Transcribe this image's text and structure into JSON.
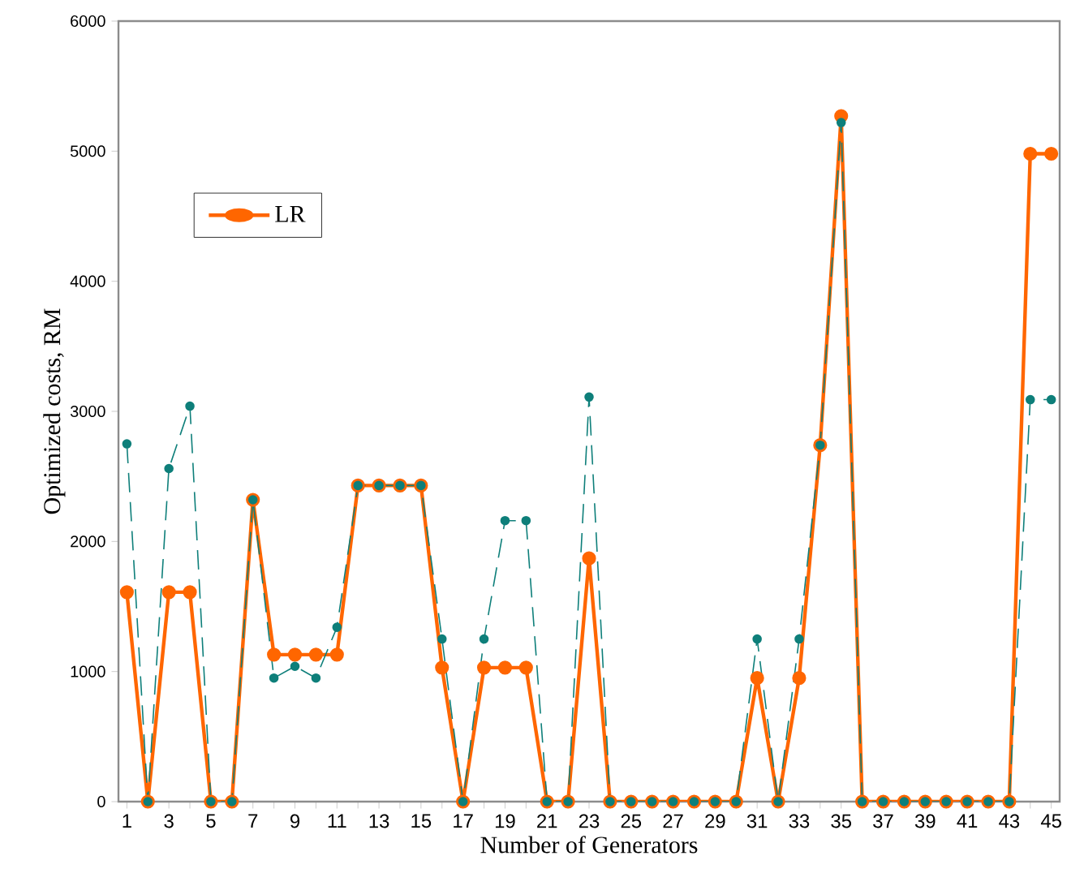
{
  "chart_data": {
    "type": "line",
    "xlabel": "Number of Generators",
    "ylabel": "Optimized costs, RM",
    "x": [
      1,
      2,
      3,
      4,
      5,
      6,
      7,
      8,
      9,
      10,
      11,
      12,
      13,
      14,
      15,
      16,
      17,
      18,
      19,
      20,
      21,
      22,
      23,
      24,
      25,
      26,
      27,
      28,
      29,
      30,
      31,
      32,
      33,
      34,
      35,
      36,
      37,
      38,
      39,
      40,
      41,
      42,
      43,
      44,
      45
    ],
    "xlim": [
      0.6,
      45.4
    ],
    "xticks": [
      1,
      {
        "value": 2,
        "label": null
      },
      3,
      {
        "value": 4,
        "label": null
      },
      5,
      {
        "value": 6,
        "label": null
      },
      7,
      {
        "value": 8,
        "label": null
      },
      9,
      {
        "value": 10,
        "label": null
      },
      11,
      {
        "value": 12,
        "label": null
      },
      13,
      {
        "value": 14,
        "label": null
      },
      15,
      {
        "value": 16,
        "label": null
      },
      17,
      {
        "value": 18,
        "label": null
      },
      19,
      {
        "value": 20,
        "label": null
      },
      21,
      {
        "value": 22,
        "label": null
      },
      23,
      {
        "value": 24,
        "label": null
      },
      25,
      {
        "value": 26,
        "label": null
      },
      27,
      {
        "value": 28,
        "label": null
      },
      29,
      {
        "value": 30,
        "label": null
      },
      31,
      {
        "value": 32,
        "label": null
      },
      33,
      {
        "value": 34,
        "label": null
      },
      35,
      {
        "value": 36,
        "label": null
      },
      37,
      {
        "value": 38,
        "label": null
      },
      39,
      {
        "value": 40,
        "label": null
      },
      41,
      {
        "value": 42,
        "label": null
      },
      43,
      {
        "value": 44,
        "label": null
      },
      45
    ],
    "ylim": [
      0,
      6000
    ],
    "yticks": [
      0,
      1000,
      2000,
      3000,
      4000,
      5000,
      6000
    ],
    "grid": false,
    "legend": "top left",
    "marker": "circle",
    "series": [
      {
        "name": "LR",
        "color": "#ff6600",
        "line_style": "solid",
        "values": [
          1610,
          0,
          1610,
          1610,
          0,
          0,
          2320,
          1130,
          1130,
          1130,
          1130,
          2430,
          2430,
          2430,
          2430,
          1030,
          0,
          1030,
          1030,
          1030,
          0,
          0,
          1870,
          0,
          0,
          0,
          0,
          0,
          0,
          0,
          950,
          0,
          950,
          2740,
          5270,
          0,
          0,
          0,
          0,
          0,
          0,
          0,
          0,
          4980,
          4980
        ]
      },
      {
        "color": "#0e7f7a",
        "line_style": "dashed",
        "values": [
          2750,
          0,
          2560,
          3040,
          0,
          0,
          2320,
          950,
          1040,
          950,
          1340,
          2430,
          2430,
          2430,
          2430,
          1250,
          0,
          1250,
          2160,
          2160,
          0,
          0,
          3110,
          0,
          0,
          0,
          0,
          0,
          0,
          0,
          1250,
          0,
          1250,
          2740,
          5220,
          0,
          0,
          0,
          0,
          0,
          0,
          0,
          0,
          3090,
          3090
        ]
      }
    ]
  }
}
